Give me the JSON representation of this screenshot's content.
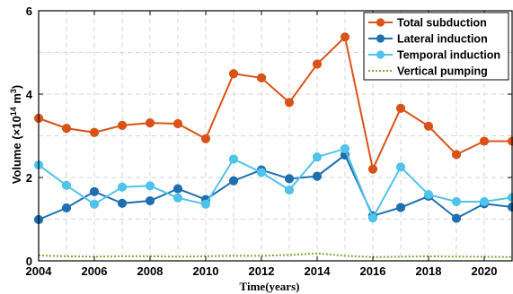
{
  "chart_data": {
    "type": "line",
    "title": "",
    "xlabel": "Time(years)",
    "ylabel": "Volume (×10¹⁴ m³)",
    "ylabel_parts": {
      "base": "Volume (",
      "mult": "×10",
      "exp1": "14",
      "unit": " m",
      "exp2": "3",
      "close": ")"
    },
    "xlim": [
      2004,
      2021
    ],
    "ylim": [
      0,
      6
    ],
    "xticks": [
      2004,
      2006,
      2008,
      2010,
      2012,
      2014,
      2016,
      2018,
      2020
    ],
    "yticks": [
      0,
      2,
      4,
      6
    ],
    "grid": true,
    "legend_position": "top-right",
    "x": [
      2004,
      2005,
      2006,
      2007,
      2008,
      2009,
      2010,
      2011,
      2012,
      2013,
      2014,
      2015,
      2016,
      2017,
      2018,
      2019,
      2020,
      2021
    ],
    "series": [
      {
        "name": "Total subduction",
        "color": "#D95319",
        "style": "solid-marker",
        "values": [
          3.42,
          3.18,
          3.08,
          3.25,
          3.31,
          3.29,
          2.93,
          4.49,
          4.39,
          3.8,
          4.72,
          5.37,
          2.2,
          3.66,
          3.23,
          2.55,
          2.87,
          2.87
        ]
      },
      {
        "name": "Lateral induction",
        "color": "#1F6FB0",
        "style": "solid-marker",
        "values": [
          0.99,
          1.27,
          1.66,
          1.38,
          1.44,
          1.73,
          1.47,
          1.92,
          2.18,
          1.97,
          2.03,
          2.54,
          1.08,
          1.28,
          1.55,
          1.02,
          1.37,
          1.29
        ]
      },
      {
        "name": "Temporal induction",
        "color": "#4FC3EB",
        "style": "solid-marker",
        "values": [
          2.3,
          1.81,
          1.36,
          1.77,
          1.8,
          1.51,
          1.36,
          2.44,
          2.12,
          1.7,
          2.49,
          2.69,
          1.03,
          2.25,
          1.59,
          1.42,
          1.42,
          1.52
        ]
      },
      {
        "name": "Vertical pumping",
        "color": "#77AC30",
        "style": "dotted",
        "values": [
          0.13,
          0.11,
          0.1,
          0.11,
          0.11,
          0.1,
          0.11,
          0.12,
          0.12,
          0.14,
          0.18,
          0.12,
          0.09,
          0.1,
          0.11,
          0.1,
          0.1,
          0.09
        ]
      }
    ]
  }
}
